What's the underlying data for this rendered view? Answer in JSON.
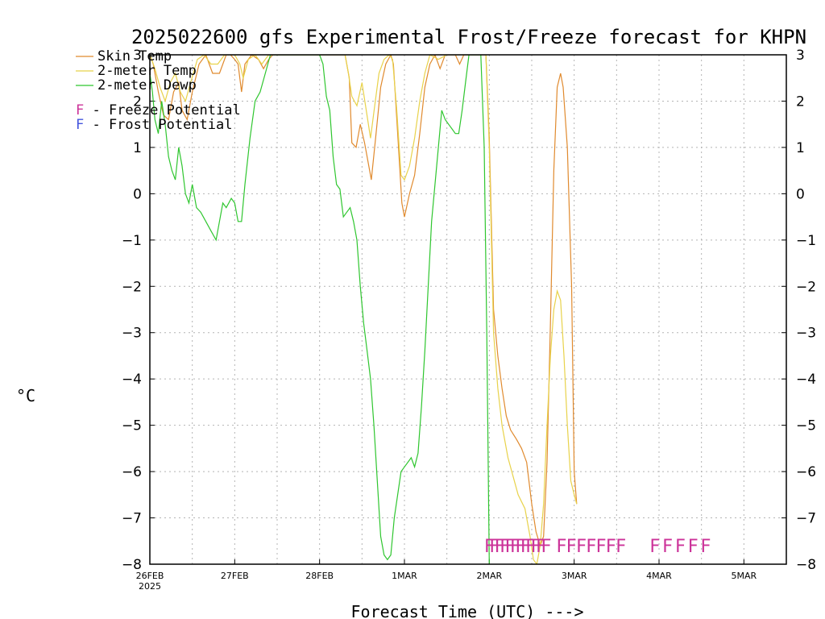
{
  "chart_data": {
    "type": "line",
    "title": "2025022600 gfs Experimental Frost/Freeze forecast for KHPN",
    "xlabel": "Forecast Time (UTC) --->",
    "ylabel": "°C",
    "ylim": [
      -8,
      3
    ],
    "y_ticks": [
      -8,
      -7,
      -6,
      -5,
      -4,
      -3,
      -2,
      -1,
      0,
      1,
      2,
      3
    ],
    "y_tick_labels": [
      "-8",
      "-7",
      "-6",
      "-5",
      "-4",
      "-3",
      "-2",
      "-1",
      "0",
      "1",
      "2",
      "3"
    ],
    "xlim": [
      "2025-02-26 00Z",
      "2025-03-05 12Z"
    ],
    "x_ticks": [
      {
        "day": 0,
        "label": "26FEB",
        "sublabel": "2025"
      },
      {
        "day": 1,
        "label": "27FEB",
        "sublabel": ""
      },
      {
        "day": 2,
        "label": "28FEB",
        "sublabel": ""
      },
      {
        "day": 3,
        "label": "1MAR",
        "sublabel": ""
      },
      {
        "day": 4,
        "label": "2MAR",
        "sublabel": ""
      },
      {
        "day": 5,
        "label": "3MAR",
        "sublabel": ""
      },
      {
        "day": 6,
        "label": "4MAR",
        "sublabel": ""
      },
      {
        "day": 7,
        "label": "5MAR",
        "sublabel": ""
      }
    ],
    "grid": true,
    "legend_position": "top-left",
    "series": [
      {
        "name": "Skin Temp",
        "color": "#e08a2e",
        "points": [
          [
            0.0,
            3.0
          ],
          [
            0.04,
            2.8
          ],
          [
            0.1,
            2.2
          ],
          [
            0.16,
            1.7
          ],
          [
            0.22,
            1.6
          ],
          [
            0.28,
            2.2
          ],
          [
            0.34,
            2.4
          ],
          [
            0.38,
            1.8
          ],
          [
            0.44,
            1.6
          ],
          [
            0.5,
            2.2
          ],
          [
            0.58,
            2.8
          ],
          [
            0.66,
            3.0
          ],
          [
            0.74,
            2.6
          ],
          [
            0.82,
            2.6
          ],
          [
            0.9,
            3.0
          ],
          [
            0.95,
            3.0
          ],
          [
            1.0,
            2.9
          ],
          [
            1.04,
            2.8
          ],
          [
            1.08,
            2.2
          ],
          [
            1.12,
            2.8
          ],
          [
            1.2,
            3.0
          ],
          [
            1.28,
            2.9
          ],
          [
            1.34,
            2.7
          ],
          [
            1.4,
            2.9
          ],
          [
            1.45,
            3.0
          ],
          [
            2.0,
            3.0
          ],
          [
            2.05,
            3.0
          ],
          [
            2.1,
            3.0
          ],
          [
            2.2,
            3.0
          ],
          [
            2.3,
            3.0
          ],
          [
            2.35,
            2.5
          ],
          [
            2.38,
            1.1
          ],
          [
            2.43,
            1.0
          ],
          [
            2.48,
            1.5
          ],
          [
            2.53,
            1.1
          ],
          [
            2.57,
            0.7
          ],
          [
            2.61,
            0.3
          ],
          [
            2.66,
            1.2
          ],
          [
            2.72,
            2.3
          ],
          [
            2.78,
            2.8
          ],
          [
            2.84,
            3.0
          ],
          [
            2.87,
            2.8
          ],
          [
            2.92,
            1.3
          ],
          [
            2.97,
            -0.2
          ],
          [
            3.0,
            -0.5
          ],
          [
            3.06,
            0.0
          ],
          [
            3.12,
            0.4
          ],
          [
            3.18,
            1.3
          ],
          [
            3.24,
            2.3
          ],
          [
            3.3,
            2.8
          ],
          [
            3.36,
            3.0
          ],
          [
            3.42,
            2.7
          ],
          [
            3.48,
            3.0
          ],
          [
            3.54,
            3.0
          ],
          [
            3.6,
            3.0
          ],
          [
            3.65,
            2.8
          ],
          [
            3.7,
            3.0
          ],
          [
            3.76,
            3.0
          ],
          [
            3.82,
            3.0
          ],
          [
            3.88,
            3.0
          ],
          [
            3.92,
            3.0
          ],
          [
            3.96,
            3.0
          ],
          [
            4.0,
            1.2
          ],
          [
            4.05,
            -2.5
          ],
          [
            4.1,
            -3.5
          ],
          [
            4.15,
            -4.2
          ],
          [
            4.2,
            -4.8
          ],
          [
            4.25,
            -5.1
          ],
          [
            4.32,
            -5.3
          ],
          [
            4.38,
            -5.5
          ],
          [
            4.44,
            -5.8
          ],
          [
            4.5,
            -6.7
          ],
          [
            4.55,
            -7.3
          ],
          [
            4.6,
            -7.6
          ],
          [
            4.64,
            -7.4
          ],
          [
            4.68,
            -5.8
          ],
          [
            4.72,
            -2.8
          ],
          [
            4.76,
            0.5
          ],
          [
            4.8,
            2.3
          ],
          [
            4.84,
            2.6
          ],
          [
            4.87,
            2.3
          ],
          [
            4.92,
            1.0
          ],
          [
            4.97,
            -2.0
          ],
          [
            5.0,
            -6.0
          ],
          [
            5.03,
            -6.7
          ]
        ]
      },
      {
        "name": "2-meter Temp",
        "color": "#e8d24a",
        "points": [
          [
            0.0,
            3.0
          ],
          [
            0.06,
            2.7
          ],
          [
            0.12,
            2.3
          ],
          [
            0.18,
            2.0
          ],
          [
            0.24,
            2.4
          ],
          [
            0.3,
            2.6
          ],
          [
            0.36,
            2.2
          ],
          [
            0.42,
            2.0
          ],
          [
            0.48,
            2.4
          ],
          [
            0.56,
            2.9
          ],
          [
            0.64,
            3.0
          ],
          [
            0.72,
            2.8
          ],
          [
            0.8,
            2.8
          ],
          [
            0.88,
            3.0
          ],
          [
            1.0,
            3.0
          ],
          [
            1.06,
            2.8
          ],
          [
            1.1,
            2.5
          ],
          [
            1.16,
            2.9
          ],
          [
            1.24,
            3.0
          ],
          [
            1.32,
            2.8
          ],
          [
            1.4,
            3.0
          ],
          [
            1.45,
            3.0
          ],
          [
            2.0,
            3.0
          ],
          [
            2.3,
            3.0
          ],
          [
            2.34,
            2.6
          ],
          [
            2.38,
            2.1
          ],
          [
            2.44,
            1.9
          ],
          [
            2.5,
            2.4
          ],
          [
            2.55,
            1.8
          ],
          [
            2.6,
            1.2
          ],
          [
            2.65,
            1.9
          ],
          [
            2.7,
            2.6
          ],
          [
            2.76,
            2.9
          ],
          [
            2.82,
            3.0
          ],
          [
            2.86,
            2.9
          ],
          [
            2.91,
            1.8
          ],
          [
            2.96,
            0.4
          ],
          [
            3.0,
            0.3
          ],
          [
            3.06,
            0.6
          ],
          [
            3.12,
            1.2
          ],
          [
            3.18,
            2.0
          ],
          [
            3.24,
            2.6
          ],
          [
            3.3,
            3.0
          ],
          [
            3.4,
            2.9
          ],
          [
            3.5,
            3.0
          ],
          [
            3.6,
            3.0
          ],
          [
            3.7,
            3.0
          ],
          [
            3.8,
            3.0
          ],
          [
            3.96,
            3.0
          ],
          [
            4.0,
            1.0
          ],
          [
            4.05,
            -3.0
          ],
          [
            4.1,
            -4.2
          ],
          [
            4.15,
            -5.0
          ],
          [
            4.22,
            -5.7
          ],
          [
            4.28,
            -6.1
          ],
          [
            4.34,
            -6.5
          ],
          [
            4.42,
            -6.8
          ],
          [
            4.48,
            -7.4
          ],
          [
            4.52,
            -7.9
          ],
          [
            4.56,
            -8.0
          ],
          [
            4.6,
            -7.6
          ],
          [
            4.64,
            -6.7
          ],
          [
            4.68,
            -5.0
          ],
          [
            4.72,
            -3.5
          ],
          [
            4.76,
            -2.5
          ],
          [
            4.8,
            -2.1
          ],
          [
            4.84,
            -2.3
          ],
          [
            4.88,
            -3.5
          ],
          [
            4.92,
            -5.0
          ],
          [
            4.96,
            -6.2
          ],
          [
            5.0,
            -6.5
          ],
          [
            5.03,
            -6.7
          ]
        ]
      },
      {
        "name": "2-meter Dewp",
        "color": "#2fc62f",
        "points": [
          [
            0.0,
            2.6
          ],
          [
            0.03,
            2.2
          ],
          [
            0.06,
            1.6
          ],
          [
            0.1,
            1.3
          ],
          [
            0.14,
            2.0
          ],
          [
            0.18,
            1.5
          ],
          [
            0.22,
            0.8
          ],
          [
            0.26,
            0.5
          ],
          [
            0.3,
            0.3
          ],
          [
            0.34,
            1.0
          ],
          [
            0.38,
            0.6
          ],
          [
            0.42,
            0.0
          ],
          [
            0.46,
            -0.2
          ],
          [
            0.5,
            0.2
          ],
          [
            0.55,
            -0.3
          ],
          [
            0.6,
            -0.4
          ],
          [
            0.66,
            -0.6
          ],
          [
            0.72,
            -0.8
          ],
          [
            0.78,
            -1.0
          ],
          [
            0.82,
            -0.6
          ],
          [
            0.86,
            -0.2
          ],
          [
            0.9,
            -0.3
          ],
          [
            0.96,
            -0.1
          ],
          [
            1.0,
            -0.2
          ],
          [
            1.04,
            -0.6
          ],
          [
            1.08,
            -0.6
          ],
          [
            1.12,
            0.2
          ],
          [
            1.18,
            1.2
          ],
          [
            1.24,
            2.0
          ],
          [
            1.3,
            2.2
          ],
          [
            1.36,
            2.6
          ],
          [
            1.42,
            3.0
          ],
          [
            1.6,
            3.0
          ],
          [
            1.8,
            3.0
          ],
          [
            2.0,
            3.0
          ],
          [
            2.04,
            2.8
          ],
          [
            2.08,
            2.1
          ],
          [
            2.12,
            1.8
          ],
          [
            2.16,
            0.8
          ],
          [
            2.2,
            0.2
          ],
          [
            2.24,
            0.1
          ],
          [
            2.28,
            -0.5
          ],
          [
            2.32,
            -0.4
          ],
          [
            2.36,
            -0.3
          ],
          [
            2.4,
            -0.6
          ],
          [
            2.44,
            -1.0
          ],
          [
            2.48,
            -2.0
          ],
          [
            2.52,
            -2.8
          ],
          [
            2.56,
            -3.4
          ],
          [
            2.6,
            -4.0
          ],
          [
            2.64,
            -5.0
          ],
          [
            2.68,
            -6.2
          ],
          [
            2.72,
            -7.4
          ],
          [
            2.76,
            -7.8
          ],
          [
            2.8,
            -7.9
          ],
          [
            2.84,
            -7.8
          ],
          [
            2.88,
            -7.0
          ],
          [
            2.92,
            -6.5
          ],
          [
            2.96,
            -6.0
          ],
          [
            3.0,
            -5.9
          ],
          [
            3.04,
            -5.8
          ],
          [
            3.08,
            -5.7
          ],
          [
            3.12,
            -5.9
          ],
          [
            3.16,
            -5.6
          ],
          [
            3.2,
            -4.6
          ],
          [
            3.24,
            -3.4
          ],
          [
            3.28,
            -2.0
          ],
          [
            3.32,
            -0.6
          ],
          [
            3.36,
            0.2
          ],
          [
            3.4,
            1.0
          ],
          [
            3.44,
            1.8
          ],
          [
            3.48,
            1.6
          ],
          [
            3.52,
            1.5
          ],
          [
            3.56,
            1.4
          ],
          [
            3.6,
            1.3
          ],
          [
            3.64,
            1.3
          ],
          [
            3.68,
            1.8
          ],
          [
            3.72,
            2.4
          ],
          [
            3.76,
            3.0
          ],
          [
            3.9,
            3.0
          ],
          [
            3.94,
            1.0
          ],
          [
            3.97,
            -3.0
          ],
          [
            4.0,
            -8.0
          ]
        ]
      }
    ],
    "markers": [
      {
        "name": "Freeze Potential",
        "symbol": "F",
        "color": "#cc3399",
        "start_day": 4.0,
        "end_day": 4.67,
        "count": 12
      },
      {
        "name": "Freeze Potential",
        "symbol": "F",
        "color": "#cc3399",
        "start_day": 4.85,
        "end_day": 5.55,
        "count": 7
      },
      {
        "name": "Freeze Potential",
        "symbol": "F",
        "color": "#cc3399",
        "start_day": 5.95,
        "end_day": 6.55,
        "count": 5
      }
    ],
    "marker_level": -7.6,
    "legend": [
      {
        "label": "Skin Temp",
        "color": "#e08a2e",
        "kind": "line"
      },
      {
        "label": "2-meter Temp",
        "color": "#e8d24a",
        "kind": "line"
      },
      {
        "label": "2-meter Dewp",
        "color": "#2fc62f",
        "kind": "line"
      },
      {
        "label": "F  -  Freeze Potential",
        "color": "#cc3399",
        "kind": "text"
      },
      {
        "label": "F  -  Frost Potential",
        "color": "#4455dd",
        "kind": "text"
      }
    ]
  }
}
